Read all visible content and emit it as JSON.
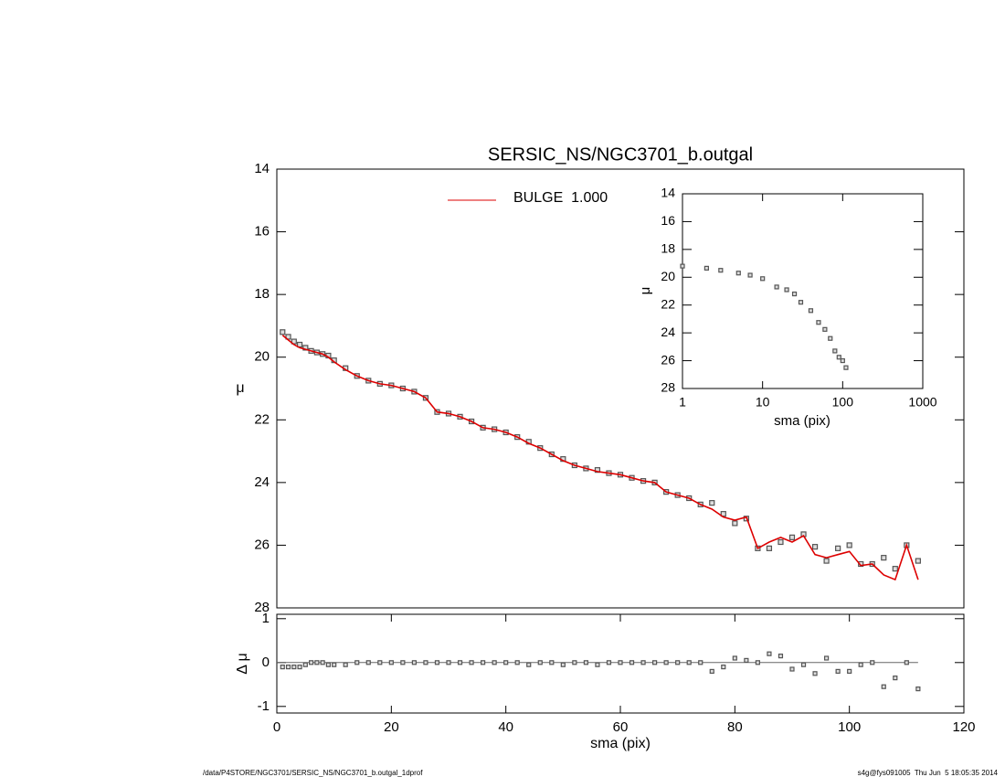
{
  "footer_left": "/data/P4STORE/NGC3701/SERSIC_NS/NGC3701_b.outgal_1dprof",
  "footer_right": "s4g@fys091005  Thu Jun  5 18:05:35 2014",
  "chart_data": [
    {
      "type": "line",
      "title": "SERSIC_NS/NGC3701_b.outgal",
      "ylabel": "μ",
      "x": [
        1,
        2,
        3,
        4,
        5,
        6,
        7,
        8,
        9,
        10,
        12,
        14,
        16,
        18,
        20,
        22,
        24,
        26,
        28,
        30,
        32,
        34,
        36,
        38,
        40,
        42,
        44,
        46,
        48,
        50,
        52,
        54,
        56,
        58,
        60,
        62,
        64,
        66,
        68,
        70,
        72,
        74,
        76,
        78,
        80,
        82,
        84,
        86,
        88,
        90,
        92,
        94,
        96,
        98,
        100,
        102,
        104,
        106,
        108,
        110,
        112
      ],
      "xlim": [
        0,
        120
      ],
      "ylim": [
        28,
        14
      ],
      "yticks": [
        14,
        16,
        18,
        20,
        22,
        24,
        26,
        28
      ],
      "series": [
        {
          "color": "#555555",
          "marker": "square",
          "values": [
            19.2,
            19.35,
            19.5,
            19.6,
            19.7,
            19.8,
            19.85,
            19.9,
            19.95,
            20.1,
            20.35,
            20.6,
            20.75,
            20.85,
            20.9,
            21.0,
            21.1,
            21.3,
            21.75,
            21.8,
            21.9,
            22.05,
            22.25,
            22.3,
            22.4,
            22.55,
            22.7,
            22.9,
            23.1,
            23.25,
            23.45,
            23.55,
            23.6,
            23.7,
            23.75,
            23.85,
            23.95,
            24.0,
            24.3,
            24.4,
            24.5,
            24.7,
            24.65,
            25.0,
            25.3,
            25.15,
            26.1,
            26.1,
            25.9,
            25.75,
            25.65,
            26.05,
            26.5,
            26.1,
            26.0,
            26.6,
            26.6,
            26.4,
            26.75,
            26.0,
            26.5
          ]
        },
        {
          "name": "BULGE  1.000",
          "color": "#dd0000",
          "values": [
            19.3,
            19.45,
            19.6,
            19.7,
            19.75,
            19.8,
            19.85,
            19.9,
            20.0,
            20.15,
            20.4,
            20.6,
            20.75,
            20.85,
            20.9,
            21.0,
            21.1,
            21.3,
            21.75,
            21.8,
            21.9,
            22.05,
            22.25,
            22.3,
            22.4,
            22.55,
            22.75,
            22.9,
            23.1,
            23.3,
            23.45,
            23.55,
            23.65,
            23.7,
            23.75,
            23.85,
            23.95,
            24.0,
            24.3,
            24.4,
            24.5,
            24.7,
            24.85,
            25.1,
            25.2,
            25.1,
            26.1,
            25.9,
            25.75,
            25.9,
            25.7,
            26.3,
            26.4,
            26.3,
            26.2,
            26.65,
            26.6,
            26.95,
            27.1,
            26.0,
            27.1
          ]
        }
      ]
    },
    {
      "type": "scatter",
      "xlabel": "sma (pix)",
      "ylabel": "μ",
      "xscale": "log",
      "x": [
        1,
        2,
        3,
        5,
        7,
        10,
        15,
        20,
        25,
        30,
        40,
        50,
        60,
        70,
        80,
        90,
        100,
        110
      ],
      "values": [
        19.2,
        19.35,
        19.5,
        19.7,
        19.85,
        20.1,
        20.7,
        20.9,
        21.2,
        21.8,
        22.4,
        23.25,
        23.75,
        24.4,
        25.3,
        25.75,
        26.0,
        26.5
      ],
      "color": "#555555",
      "xlim": [
        1,
        1000
      ],
      "xticks": [
        1,
        10,
        100,
        1000
      ],
      "ylim": [
        28,
        14
      ],
      "yticks": [
        14,
        16,
        18,
        20,
        22,
        24,
        26,
        28
      ]
    },
    {
      "type": "scatter",
      "xlabel": "sma (pix)",
      "ylabel": "Δ μ",
      "x": [
        1,
        2,
        3,
        4,
        5,
        6,
        7,
        8,
        9,
        10,
        12,
        14,
        16,
        18,
        20,
        22,
        24,
        26,
        28,
        30,
        32,
        34,
        36,
        38,
        40,
        42,
        44,
        46,
        48,
        50,
        52,
        54,
        56,
        58,
        60,
        62,
        64,
        66,
        68,
        70,
        72,
        74,
        76,
        78,
        80,
        82,
        84,
        86,
        88,
        90,
        92,
        94,
        96,
        98,
        100,
        102,
        104,
        106,
        108,
        110,
        112
      ],
      "values": [
        -0.1,
        -0.1,
        -0.1,
        -0.1,
        -0.05,
        0,
        0,
        0,
        -0.05,
        -0.05,
        -0.05,
        0,
        0,
        0,
        0,
        0,
        0,
        0,
        0,
        0,
        0,
        0,
        0,
        0,
        0,
        0,
        -0.05,
        0,
        0,
        -0.05,
        0,
        0,
        -0.05,
        0,
        0,
        0,
        0,
        0,
        0,
        0,
        0,
        0,
        -0.2,
        -0.1,
        0.1,
        0.05,
        0,
        0.2,
        0.15,
        -0.15,
        -0.05,
        -0.25,
        0.1,
        -0.2,
        -0.2,
        -0.05,
        0,
        -0.55,
        -0.35,
        0,
        -0.6
      ],
      "color": "#555555",
      "xlim": [
        0,
        120
      ],
      "xticks": [
        0,
        20,
        40,
        60,
        80,
        100,
        120
      ],
      "ylim": [
        -1.15,
        1.1
      ],
      "yticks": [
        -1,
        0,
        1
      ]
    }
  ]
}
